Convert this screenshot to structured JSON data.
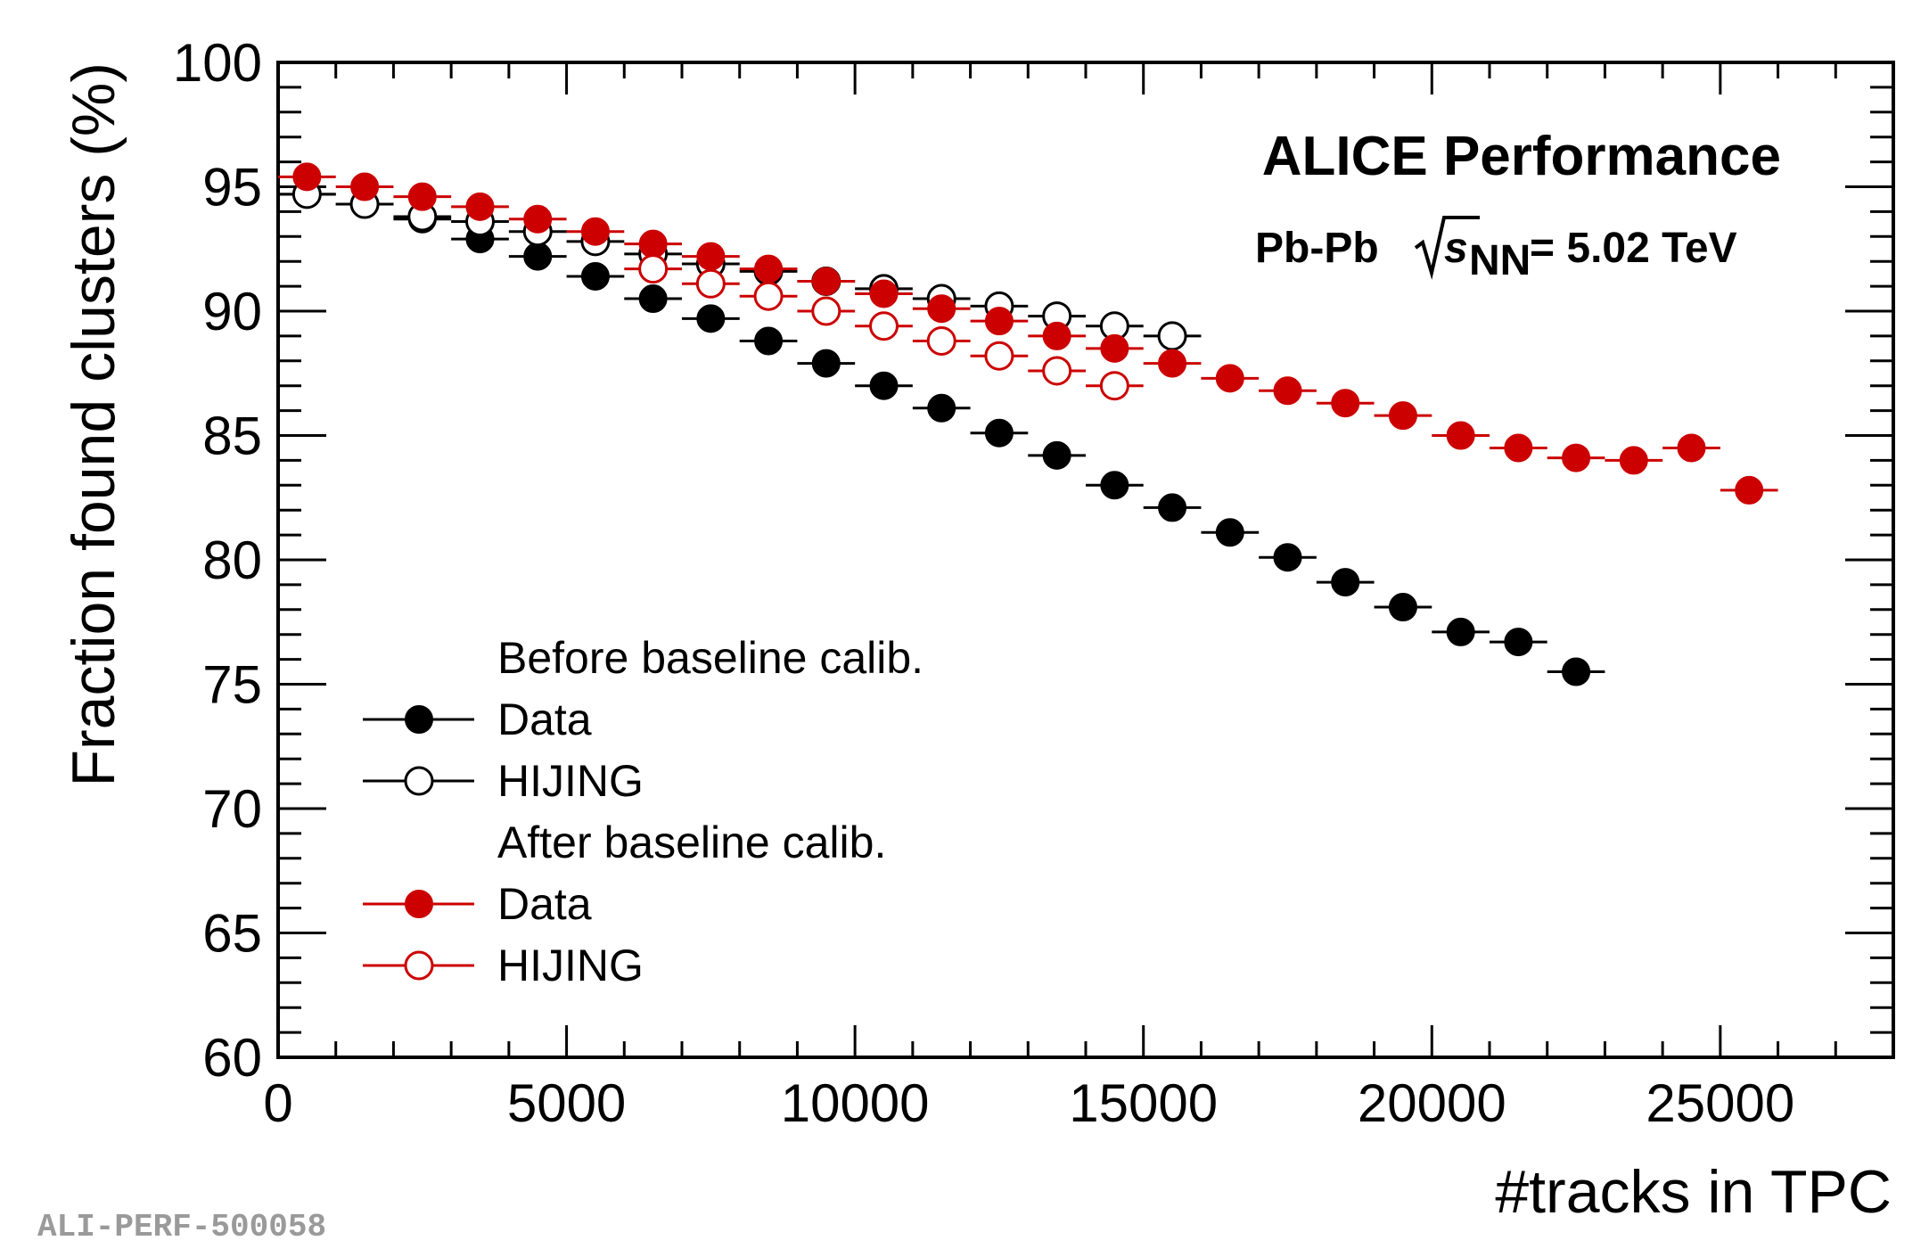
{
  "chart_data": {
    "type": "scatter",
    "xlabel": "#tracks in TPC",
    "ylabel": "Fraction found clusters (%)",
    "xlim": [
      0,
      28000
    ],
    "ylim": [
      60,
      100
    ],
    "x_ticks": [
      0,
      5000,
      10000,
      15000,
      20000,
      25000
    ],
    "x_tick_labels": [
      "0",
      "5000",
      "10000",
      "15000",
      "20000",
      "25000"
    ],
    "y_ticks": [
      60,
      65,
      70,
      75,
      80,
      85,
      90,
      95,
      100
    ],
    "y_tick_labels": [
      "60",
      "65",
      "70",
      "75",
      "80",
      "85",
      "90",
      "95",
      "100"
    ],
    "x_error_half_width": 500,
    "colors": {
      "black": "#000000",
      "red": "#cc0000"
    },
    "annotation": {
      "title": "ALICE Performance",
      "system": "Pb-Pb",
      "energy_label": "= 5.02 TeV",
      "sqrt_var": "s",
      "sqrt_sub": "NN"
    },
    "legend": {
      "placement": "bottom-left",
      "groups": [
        {
          "header": "Before baseline calib.",
          "entries": [
            {
              "label": "Data",
              "series": 0
            },
            {
              "label": "HIJING",
              "series": 1
            }
          ]
        },
        {
          "header": "After baseline calib.",
          "entries": [
            {
              "label": "Data",
              "series": 2
            },
            {
              "label": "HIJING",
              "series": 3
            }
          ]
        }
      ]
    },
    "series": [
      {
        "name": "Before baseline calib. Data",
        "color": "#000000",
        "filled": true,
        "x": [
          500,
          1500,
          2500,
          3500,
          4500,
          5500,
          6500,
          7500,
          8500,
          9500,
          10500,
          11500,
          12500,
          13500,
          14500,
          15500,
          16500,
          17500,
          18500,
          19500,
          20500,
          21500,
          22500
        ],
        "y": [
          94.7,
          94.3,
          93.7,
          92.9,
          92.2,
          91.4,
          90.5,
          89.7,
          88.8,
          87.9,
          87.0,
          86.1,
          85.1,
          84.2,
          83.0,
          82.1,
          81.1,
          80.1,
          79.1,
          78.1,
          77.1,
          76.7,
          75.5
        ]
      },
      {
        "name": "Before baseline calib. HIJING",
        "color": "#000000",
        "filled": false,
        "x": [
          500,
          1500,
          2500,
          3500,
          4500,
          5500,
          6500,
          7500,
          8500,
          9500,
          10500,
          11500,
          12500,
          13500,
          14500,
          15500
        ],
        "y": [
          94.7,
          94.3,
          93.8,
          93.6,
          93.2,
          92.8,
          92.3,
          91.9,
          91.6,
          91.2,
          90.9,
          90.5,
          90.2,
          89.8,
          89.4,
          89.0
        ]
      },
      {
        "name": "After baseline calib. Data",
        "color": "#cc0000",
        "filled": true,
        "x": [
          500,
          1500,
          2500,
          3500,
          4500,
          5500,
          6500,
          7500,
          8500,
          9500,
          10500,
          11500,
          12500,
          13500,
          14500,
          15500,
          16500,
          17500,
          18500,
          19500,
          20500,
          21500,
          22500,
          23500,
          24500,
          25500
        ],
        "y": [
          95.4,
          95.0,
          94.6,
          94.2,
          93.7,
          93.2,
          92.7,
          92.2,
          91.7,
          91.2,
          90.7,
          90.1,
          89.6,
          89.0,
          88.5,
          87.9,
          87.3,
          86.8,
          86.3,
          85.8,
          85.0,
          84.5,
          84.1,
          84.0,
          84.5,
          82.8
        ]
      },
      {
        "name": "After baseline calib. HIJING",
        "color": "#cc0000",
        "filled": false,
        "x": [
          6500,
          7500,
          8500,
          9500,
          10500,
          11500,
          12500,
          13500,
          14500
        ],
        "y": [
          91.7,
          91.1,
          90.6,
          90.0,
          89.4,
          88.8,
          88.2,
          87.6,
          87.0
        ]
      }
    ]
  },
  "footer": {
    "watermark": "ALI-PERF-500058"
  }
}
